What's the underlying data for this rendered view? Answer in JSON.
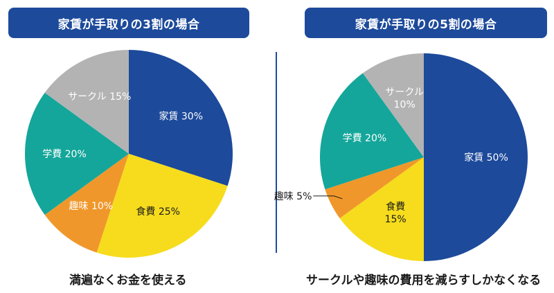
{
  "colors": {
    "title_bg": "#1d4a9b",
    "rent": "#1d4a9b",
    "food": "#f6dc1d",
    "hobby": "#f0972b",
    "school": "#14a69a",
    "circle": "#b3b3b3"
  },
  "chart_data": [
    {
      "type": "pie",
      "title": "家賃が手取りの3割の場合",
      "caption": "満遍なくお金を使える",
      "slices": [
        {
          "name": "家賃",
          "value": 30,
          "label": "家賃 30%",
          "color": "#1d4a9b",
          "text_color": "#ffffff"
        },
        {
          "name": "食費",
          "value": 25,
          "label": "食費 25%",
          "color": "#f6dc1d",
          "text_color": "#1a1a1a"
        },
        {
          "name": "趣味",
          "value": 10,
          "label": "趣味 10%",
          "color": "#f0972b",
          "text_color": "#ffffff"
        },
        {
          "name": "学費",
          "value": 20,
          "label": "学費 20%",
          "color": "#14a69a",
          "text_color": "#ffffff"
        },
        {
          "name": "サークル",
          "value": 15,
          "label": "サークル 15%",
          "color": "#b3b3b3",
          "text_color": "#ffffff"
        }
      ]
    },
    {
      "type": "pie",
      "title": "家賃が手取りの5割の場合",
      "caption": "サークルや趣味の費用を減らすしかなくなる",
      "slices": [
        {
          "name": "家賃",
          "value": 50,
          "label": "家賃 50%",
          "color": "#1d4a9b",
          "text_color": "#ffffff"
        },
        {
          "name": "食費",
          "value": 15,
          "label": "食費\n15%",
          "color": "#f6dc1d",
          "text_color": "#1a1a1a"
        },
        {
          "name": "趣味",
          "value": 5,
          "label": "趣味 5%",
          "color": "#f0972b",
          "text_color": "#1a1a1a",
          "outside": true
        },
        {
          "name": "学費",
          "value": 20,
          "label": "学費 20%",
          "color": "#14a69a",
          "text_color": "#ffffff"
        },
        {
          "name": "サークル",
          "value": 10,
          "label": "サークル\n10%",
          "color": "#b3b3b3",
          "text_color": "#ffffff"
        }
      ]
    }
  ]
}
